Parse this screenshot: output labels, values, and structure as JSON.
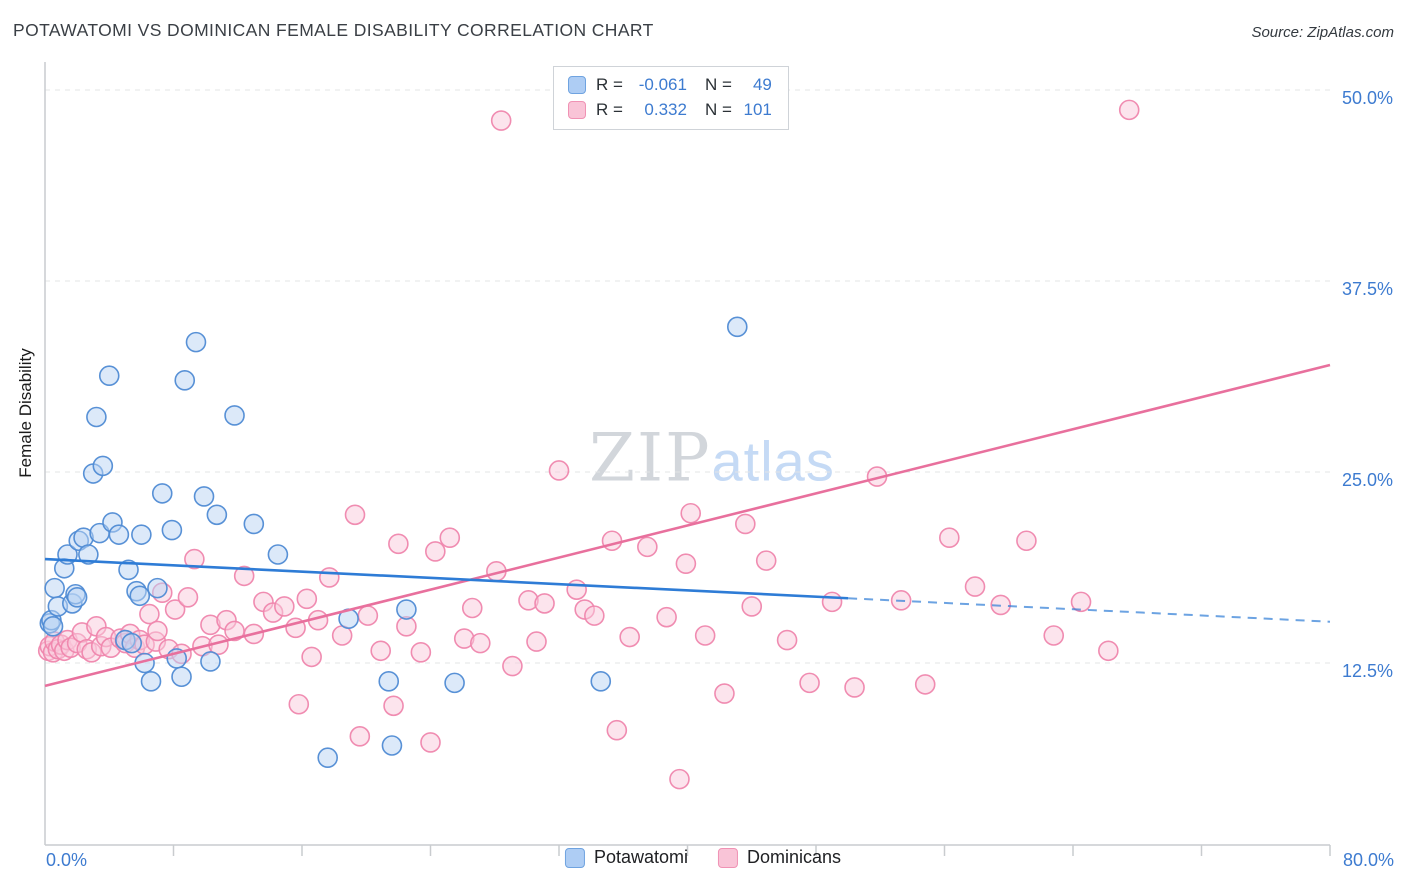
{
  "header": {
    "source": "Source: ZipAtlas.com"
  },
  "watermark": {
    "part1": "ZIP",
    "part2": "atlas"
  },
  "chart_data": {
    "type": "scatter",
    "title": "POTAWATOMI VS DOMINICAN FEMALE DISABILITY CORRELATION CHART",
    "xlabel": "",
    "ylabel": "Female Disability",
    "xlim": [
      0,
      80
    ],
    "ylim": [
      0,
      51
    ],
    "grid": "dashed-horizontal",
    "legend_position": "bottom-center",
    "x_tick_labels": [
      "0.0%",
      "80.0%"
    ],
    "y_tick_labels": [
      "50.0%",
      "37.5%",
      "25.0%",
      "12.5%"
    ],
    "gridlines_y": [
      12.5,
      25,
      37.5,
      50
    ],
    "series": [
      {
        "name": "Potawatomi",
        "R": -0.061,
        "N": 49,
        "fill": "#BAD4F4",
        "stroke": "#4F8BD4",
        "points": [
          [
            0.3,
            15.1
          ],
          [
            0.4,
            15.3
          ],
          [
            0.5,
            14.9
          ],
          [
            0.6,
            17.4
          ],
          [
            0.8,
            16.2
          ],
          [
            1.2,
            18.7
          ],
          [
            1.4,
            19.6
          ],
          [
            1.7,
            16.4
          ],
          [
            1.9,
            17.0
          ],
          [
            2.0,
            16.8
          ],
          [
            2.1,
            20.5
          ],
          [
            2.4,
            20.7
          ],
          [
            2.7,
            19.6
          ],
          [
            3.0,
            24.9
          ],
          [
            3.2,
            28.6
          ],
          [
            3.4,
            21.0
          ],
          [
            3.6,
            25.4
          ],
          [
            4.0,
            31.3
          ],
          [
            4.2,
            21.7
          ],
          [
            4.6,
            20.9
          ],
          [
            5.0,
            14.0
          ],
          [
            5.2,
            18.6
          ],
          [
            5.4,
            13.8
          ],
          [
            5.7,
            17.2
          ],
          [
            5.9,
            16.9
          ],
          [
            6.0,
            20.9
          ],
          [
            6.2,
            12.5
          ],
          [
            6.6,
            11.3
          ],
          [
            7.0,
            17.4
          ],
          [
            7.3,
            23.6
          ],
          [
            7.9,
            21.2
          ],
          [
            8.2,
            12.8
          ],
          [
            8.5,
            11.6
          ],
          [
            8.7,
            31.0
          ],
          [
            9.4,
            33.5
          ],
          [
            9.9,
            23.4
          ],
          [
            10.3,
            12.6
          ],
          [
            10.7,
            22.2
          ],
          [
            11.8,
            28.7
          ],
          [
            13.0,
            21.6
          ],
          [
            14.5,
            19.6
          ],
          [
            17.6,
            6.3
          ],
          [
            18.9,
            15.4
          ],
          [
            21.4,
            11.3
          ],
          [
            21.6,
            7.1
          ],
          [
            22.5,
            16.0
          ],
          [
            25.5,
            11.2
          ],
          [
            34.6,
            11.3
          ],
          [
            43.1,
            34.5
          ]
        ]
      },
      {
        "name": "Dominicans",
        "R": 0.332,
        "N": 101,
        "fill": "#FAC9DB",
        "stroke": "#EF86AD",
        "points": [
          [
            0.2,
            13.3
          ],
          [
            0.3,
            13.6
          ],
          [
            0.5,
            13.2
          ],
          [
            0.6,
            13.9
          ],
          [
            0.8,
            13.4
          ],
          [
            1.0,
            13.7
          ],
          [
            1.2,
            13.3
          ],
          [
            1.4,
            14.0
          ],
          [
            1.6,
            13.5
          ],
          [
            2.0,
            13.8
          ],
          [
            2.3,
            14.5
          ],
          [
            2.6,
            13.4
          ],
          [
            2.9,
            13.2
          ],
          [
            3.2,
            14.9
          ],
          [
            3.5,
            13.6
          ],
          [
            3.8,
            14.2
          ],
          [
            4.1,
            13.5
          ],
          [
            4.7,
            14.1
          ],
          [
            5.0,
            13.8
          ],
          [
            5.3,
            14.4
          ],
          [
            5.6,
            13.5
          ],
          [
            5.9,
            14.0
          ],
          [
            6.2,
            13.7
          ],
          [
            6.5,
            15.7
          ],
          [
            6.9,
            13.9
          ],
          [
            7.0,
            14.6
          ],
          [
            7.3,
            17.1
          ],
          [
            7.7,
            13.4
          ],
          [
            8.1,
            16.0
          ],
          [
            8.5,
            13.1
          ],
          [
            8.9,
            16.8
          ],
          [
            9.3,
            19.3
          ],
          [
            9.8,
            13.6
          ],
          [
            10.3,
            15.0
          ],
          [
            10.8,
            13.7
          ],
          [
            11.3,
            15.3
          ],
          [
            11.8,
            14.6
          ],
          [
            12.4,
            18.2
          ],
          [
            13.0,
            14.4
          ],
          [
            13.6,
            16.5
          ],
          [
            14.2,
            15.8
          ],
          [
            14.9,
            16.2
          ],
          [
            15.6,
            14.8
          ],
          [
            15.8,
            9.8
          ],
          [
            16.3,
            16.7
          ],
          [
            16.6,
            12.9
          ],
          [
            17.0,
            15.3
          ],
          [
            17.7,
            18.1
          ],
          [
            18.5,
            14.3
          ],
          [
            19.3,
            22.2
          ],
          [
            19.6,
            7.7
          ],
          [
            20.1,
            15.6
          ],
          [
            20.9,
            13.3
          ],
          [
            21.7,
            9.7
          ],
          [
            22.0,
            20.3
          ],
          [
            22.5,
            14.9
          ],
          [
            23.4,
            13.2
          ],
          [
            24.0,
            7.3
          ],
          [
            24.3,
            19.8
          ],
          [
            25.2,
            20.7
          ],
          [
            26.1,
            14.1
          ],
          [
            26.6,
            16.1
          ],
          [
            27.1,
            13.8
          ],
          [
            28.1,
            18.5
          ],
          [
            28.4,
            48.0
          ],
          [
            29.1,
            12.3
          ],
          [
            30.1,
            16.6
          ],
          [
            30.6,
            13.9
          ],
          [
            31.1,
            16.4
          ],
          [
            32.0,
            25.1
          ],
          [
            33.1,
            17.3
          ],
          [
            33.6,
            16.0
          ],
          [
            34.2,
            15.6
          ],
          [
            35.3,
            20.5
          ],
          [
            35.6,
            8.1
          ],
          [
            36.4,
            14.2
          ],
          [
            37.5,
            20.1
          ],
          [
            38.7,
            15.5
          ],
          [
            39.5,
            4.9
          ],
          [
            39.9,
            19.0
          ],
          [
            40.2,
            22.3
          ],
          [
            41.1,
            14.3
          ],
          [
            42.3,
            10.5
          ],
          [
            43.6,
            21.6
          ],
          [
            44.0,
            16.2
          ],
          [
            44.9,
            19.2
          ],
          [
            46.2,
            14.0
          ],
          [
            47.6,
            11.2
          ],
          [
            49.0,
            16.5
          ],
          [
            50.4,
            10.9
          ],
          [
            51.8,
            24.7
          ],
          [
            53.3,
            16.6
          ],
          [
            54.8,
            11.1
          ],
          [
            56.3,
            20.7
          ],
          [
            57.9,
            17.5
          ],
          [
            59.5,
            16.3
          ],
          [
            61.1,
            20.5
          ],
          [
            62.8,
            14.3
          ],
          [
            64.5,
            16.5
          ],
          [
            66.2,
            13.3
          ],
          [
            67.5,
            48.7
          ]
        ]
      }
    ],
    "trend_lines": [
      {
        "series": "Dominicans",
        "color": "#E8709D",
        "start": [
          0,
          11.0
        ],
        "end": [
          80,
          32.0
        ]
      },
      {
        "series": "Potawatomi",
        "color": "#2E7CD6",
        "start": [
          0,
          19.3
        ],
        "end": [
          80,
          15.2
        ],
        "solid_until": 50
      }
    ],
    "stats_box": {
      "rows": [
        {
          "r_label": "R =",
          "r_value": "-0.061",
          "n_label": "N =",
          "n_value": "49"
        },
        {
          "r_label": "R =",
          "r_value": "0.332",
          "n_label": "N =",
          "n_value": "101"
        }
      ]
    }
  }
}
